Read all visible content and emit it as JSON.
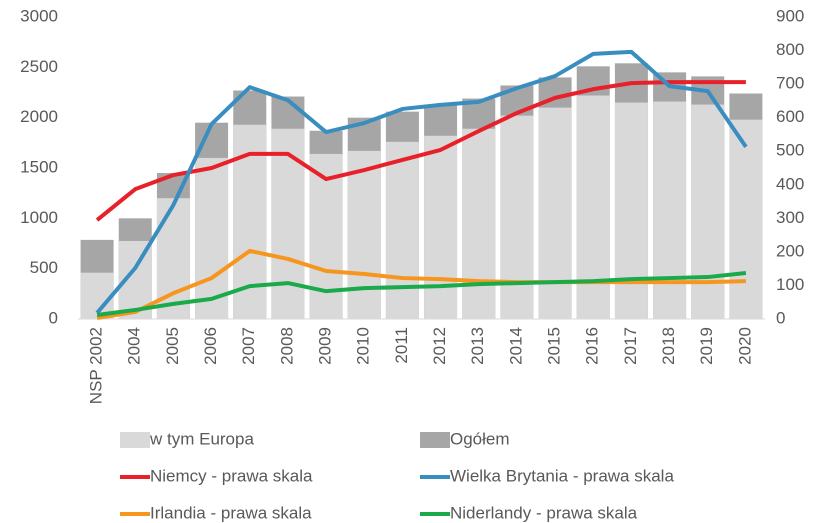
{
  "chart_data": {
    "type": "combo",
    "categories": [
      "NSP 2002",
      "2004",
      "2005",
      "2006",
      "2007",
      "2008",
      "2009",
      "2010",
      "2011",
      "2012",
      "2013",
      "2014",
      "2015",
      "2016",
      "2017",
      "2018",
      "2019",
      "2020"
    ],
    "ylim": [
      0,
      3000
    ],
    "yticks": [
      0,
      500,
      1000,
      1500,
      2000,
      2500,
      3000
    ],
    "y2lim": [
      0,
      900
    ],
    "y2ticks": [
      0,
      100,
      200,
      300,
      400,
      500,
      600,
      700,
      800,
      900
    ],
    "series": [
      {
        "name": "w tym Europa",
        "type": "bar",
        "color": "#d9d9d9",
        "values": [
          460,
          775,
          1200,
          1600,
          1930,
          1890,
          1640,
          1670,
          1760,
          1820,
          1890,
          2020,
          2100,
          2220,
          2150,
          2160,
          2130,
          1980
        ]
      },
      {
        "name": "Ogółem",
        "type": "bar",
        "color": "#a6a6a6",
        "values": [
          786,
          1000,
          1450,
          1950,
          2270,
          2210,
          1870,
          2000,
          2060,
          2130,
          2190,
          2320,
          2400,
          2510,
          2540,
          2450,
          2410,
          2240
        ]
      },
      {
        "name": "Niemcy - prawa skala",
        "type": "line",
        "axis": "y2",
        "color": "#e8202a",
        "values": [
          295,
          387,
          429,
          450,
          492,
          492,
          417,
          444,
          474,
          504,
          560,
          614,
          659,
          685,
          703,
          706,
          706,
          706
        ]
      },
      {
        "name": "Wielka Brytania - prawa skala",
        "type": "line",
        "axis": "y2",
        "color": "#3a8dbf",
        "values": [
          18,
          152,
          340,
          581,
          691,
          652,
          557,
          584,
          626,
          638,
          647,
          688,
          724,
          790,
          796,
          694,
          679,
          513
        ]
      },
      {
        "name": "Irlandia - prawa skala",
        "type": "line",
        "axis": "y2",
        "color": "#f7961e",
        "values": [
          3,
          21,
          77,
          122,
          203,
          179,
          143,
          134,
          122,
          119,
          113,
          110,
          110,
          110,
          110,
          110,
          110,
          113
        ]
      },
      {
        "name": "Niderlandy - prawa skala",
        "type": "line",
        "axis": "y2",
        "color": "#1aaa4a",
        "values": [
          12,
          27,
          45,
          60,
          98,
          107,
          83,
          92,
          95,
          98,
          104,
          107,
          110,
          113,
          119,
          122,
          125,
          137
        ]
      }
    ]
  }
}
